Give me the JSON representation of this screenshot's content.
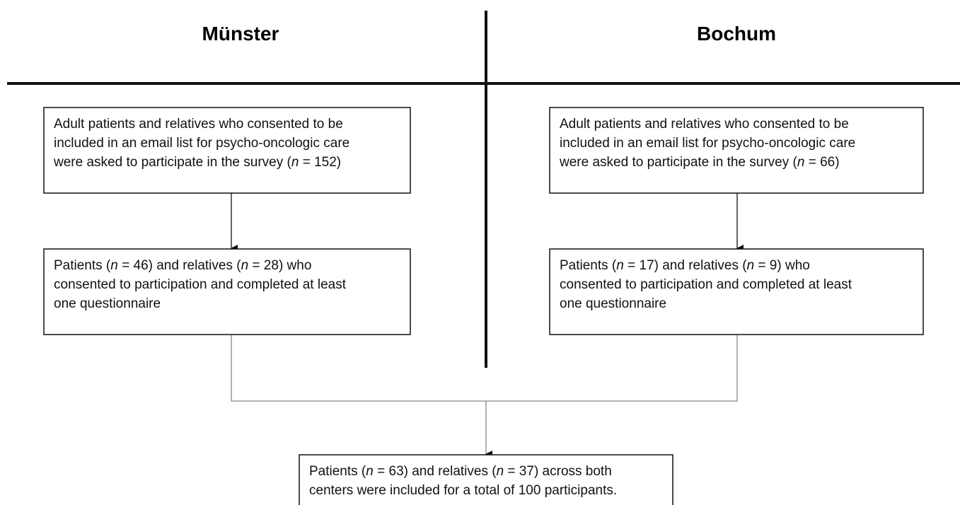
{
  "headers": [
    "Münster",
    "Bochum"
  ],
  "nodes": [
    {
      "lines": [
        [
          "Adult patients and relatives who consented to be"
        ],
        [
          "included in an email list for psycho-oncologic care"
        ],
        [
          "were asked to participate in the survey (",
          "n",
          " = 152)"
        ]
      ]
    },
    {
      "lines": [
        [
          "Adult patients and relatives who consented to be"
        ],
        [
          "included in an email list for psycho-oncologic care"
        ],
        [
          "were asked to participate in the survey (",
          "n",
          " = 66)"
        ]
      ]
    },
    {
      "lines": [
        [
          "Patients (",
          "n",
          " = 46) and relatives (",
          "n",
          " = 28) who"
        ],
        [
          "consented to participation and completed at least"
        ],
        [
          "one questionnaire"
        ]
      ]
    },
    {
      "lines": [
        [
          "Patients (",
          "n",
          " = 17) and relatives (",
          "n",
          " = 9) who"
        ],
        [
          "consented to participation and completed at least"
        ],
        [
          "one questionnaire"
        ]
      ]
    },
    {
      "lines": [
        [
          "Patients (",
          "n",
          " = 63) and relatives (",
          "n",
          " = 37) across both"
        ],
        [
          "centers were included for a total of 100 participants."
        ]
      ]
    }
  ]
}
